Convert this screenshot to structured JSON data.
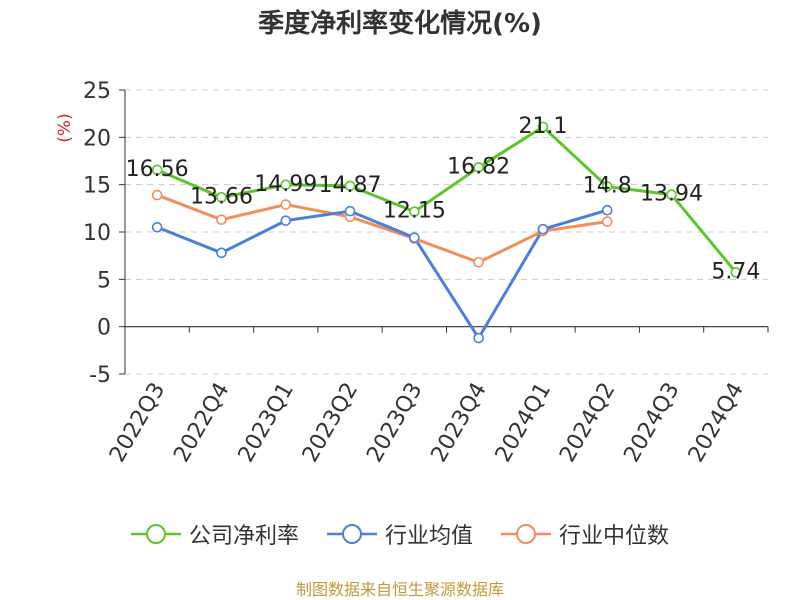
{
  "chart_data": {
    "type": "line",
    "title": "季度净利率变化情况(%)",
    "ylabel": "(%)",
    "ylim": [
      -5,
      25
    ],
    "yticks": [
      -5,
      0,
      5,
      10,
      15,
      20,
      25
    ],
    "grid": true,
    "legend_position": "bottom",
    "categories": [
      "2022Q3",
      "2022Q4",
      "2023Q1",
      "2023Q2",
      "2023Q3",
      "2023Q4",
      "2024Q1",
      "2024Q2",
      "2024Q3",
      "2024Q4"
    ],
    "series": [
      {
        "name": "公司净利率",
        "color": "#5dc52a",
        "show_labels": true,
        "values": [
          16.56,
          13.66,
          14.99,
          14.87,
          12.15,
          16.82,
          21.1,
          14.8,
          13.94,
          5.74
        ]
      },
      {
        "name": "行业均值",
        "color": "#4a7fdc",
        "show_labels": false,
        "values": [
          10.5,
          7.8,
          11.2,
          12.2,
          9.4,
          -1.2,
          10.3,
          12.3,
          null,
          null
        ]
      },
      {
        "name": "行业中位数",
        "color": "#f28e5b",
        "show_labels": false,
        "values": [
          13.9,
          11.3,
          12.9,
          11.6,
          9.3,
          6.8,
          10.1,
          11.1,
          null,
          null
        ]
      }
    ]
  },
  "footer": {
    "source": "制图数据来自恒生聚源数据库"
  }
}
